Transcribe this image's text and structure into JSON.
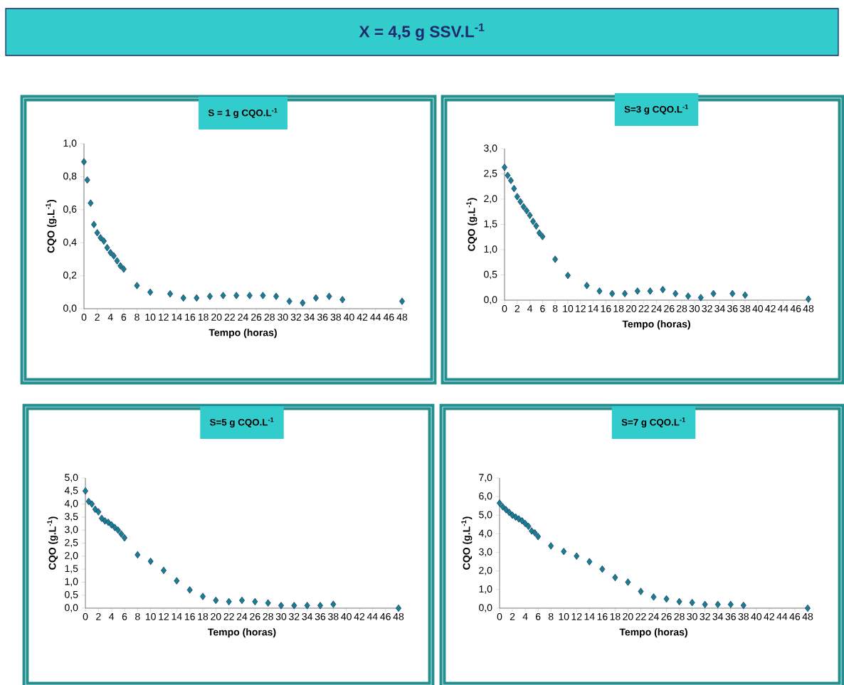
{
  "chart_data": [
    {
      "type": "scatter",
      "title": "S = 1 g CQO.L$^{-1}$",
      "annotations": [
        "X = 4,5 g SSV.L$^{-1}$"
      ],
      "xlabel": "Tempo (horas)",
      "ylabel": "CQO (g.L$^{-1}$)",
      "marker": "diamond",
      "color": "#17808f",
      "x": [
        0,
        0.5,
        1,
        1.5,
        2,
        2.5,
        3,
        3.5,
        4,
        4.5,
        5,
        5.5,
        6,
        8,
        10,
        13,
        15,
        17,
        19,
        21,
        23,
        25,
        27,
        29,
        31,
        33,
        35,
        37,
        39,
        48
      ],
      "values": [
        0.89,
        0.78,
        0.64,
        0.51,
        0.46,
        0.43,
        0.41,
        0.37,
        0.34,
        0.32,
        0.29,
        0.26,
        0.24,
        0.14,
        0.1,
        0.09,
        0.065,
        0.065,
        0.075,
        0.08,
        0.08,
        0.08,
        0.08,
        0.075,
        0.045,
        0.035,
        0.065,
        0.075,
        0.055,
        0.045
      ],
      "xlim": [
        0,
        48
      ],
      "xticks": [
        0,
        2,
        4,
        6,
        8,
        10,
        12,
        14,
        16,
        18,
        20,
        22,
        24,
        26,
        28,
        30,
        32,
        34,
        36,
        38,
        40,
        42,
        44,
        46,
        48
      ],
      "ylim": [
        0,
        1.0
      ],
      "yticks": [
        {
          "value": 0,
          "label": "0,0"
        },
        {
          "value": 0.2,
          "label": "0,2"
        },
        {
          "value": 0.4,
          "label": "0,4"
        },
        {
          "value": 0.6,
          "label": "0,6"
        },
        {
          "value": 0.8,
          "label": "0,8"
        },
        {
          "value": 1.0,
          "label": "1,0"
        }
      ]
    },
    {
      "type": "scatter",
      "title": "S=3 g CQO.L$^{-1}$",
      "xlabel": "Tempo (horas)",
      "ylabel": "CQO (g.L$^{-1}$)",
      "marker": "diamond",
      "color": "#17808f",
      "x": [
        0,
        0.5,
        1,
        1.5,
        2,
        2.5,
        3,
        3.5,
        4,
        4.5,
        5,
        5.5,
        6,
        8,
        10,
        13,
        15,
        17,
        19,
        21,
        23,
        25,
        27,
        29,
        31,
        33,
        36,
        38,
        48
      ],
      "values": [
        2.63,
        2.47,
        2.37,
        2.21,
        2.05,
        1.95,
        1.85,
        1.77,
        1.68,
        1.56,
        1.47,
        1.33,
        1.26,
        0.81,
        0.49,
        0.29,
        0.18,
        0.13,
        0.13,
        0.18,
        0.18,
        0.21,
        0.13,
        0.08,
        0.05,
        0.13,
        0.13,
        0.1,
        0.02
      ],
      "xlim": [
        0,
        48
      ],
      "xticks": [
        0,
        2,
        4,
        6,
        8,
        10,
        12,
        14,
        16,
        18,
        20,
        22,
        24,
        26,
        28,
        30,
        32,
        34,
        36,
        38,
        40,
        42,
        44,
        46,
        48
      ],
      "ylim": [
        0,
        3.0
      ],
      "yticks": [
        {
          "value": 0,
          "label": "0,0"
        },
        {
          "value": 0.5,
          "label": "0,5"
        },
        {
          "value": 1.0,
          "label": "1,0"
        },
        {
          "value": 1.5,
          "label": "1,5"
        },
        {
          "value": 2.0,
          "label": "2,0"
        },
        {
          "value": 2.5,
          "label": "2,5"
        },
        {
          "value": 3.0,
          "label": "3,0"
        }
      ]
    },
    {
      "type": "scatter",
      "title": "S=5 g CQO.L$^{-1}$",
      "xlabel": "Tempo (horas)",
      "ylabel": "CQO (g.L$^{-1}$)",
      "marker": "diamond",
      "color": "#17808f",
      "x": [
        0,
        0.5,
        1,
        1.5,
        2,
        2.5,
        3,
        3.5,
        4,
        4.5,
        5,
        5.5,
        6,
        8,
        10,
        12,
        14,
        16,
        18,
        20,
        22,
        24,
        26,
        28,
        30,
        32,
        34,
        36,
        38,
        48
      ],
      "values": [
        4.5,
        4.1,
        4.0,
        3.8,
        3.7,
        3.45,
        3.35,
        3.3,
        3.2,
        3.1,
        3.0,
        2.85,
        2.7,
        2.05,
        1.8,
        1.45,
        1.05,
        0.7,
        0.45,
        0.3,
        0.25,
        0.3,
        0.25,
        0.2,
        0.1,
        0.1,
        0.1,
        0.1,
        0.15,
        0.0
      ],
      "xlim": [
        0,
        48
      ],
      "xticks": [
        0,
        2,
        4,
        6,
        8,
        10,
        12,
        14,
        16,
        18,
        20,
        22,
        24,
        26,
        28,
        30,
        32,
        34,
        36,
        38,
        40,
        42,
        44,
        46,
        48
      ],
      "ylim": [
        0,
        5.0
      ],
      "yticks": [
        {
          "value": 0,
          "label": "0,0"
        },
        {
          "value": 0.5,
          "label": "0,5"
        },
        {
          "value": 1.0,
          "label": "1,0"
        },
        {
          "value": 1.5,
          "label": "1,5"
        },
        {
          "value": 2.0,
          "label": "2,0"
        },
        {
          "value": 2.5,
          "label": "2,5"
        },
        {
          "value": 3.0,
          "label": "3,0"
        },
        {
          "value": 3.5,
          "label": "3,5"
        },
        {
          "value": 4.0,
          "label": "4,0"
        },
        {
          "value": 4.5,
          "label": "4,5"
        },
        {
          "value": 5.0,
          "label": "5,0"
        }
      ]
    },
    {
      "type": "scatter",
      "title": "S=7 g CQO.L$^{-1}$",
      "xlabel": "Tempo (horas)",
      "ylabel": "CQO (g.L$^{-1}$)",
      "marker": "diamond",
      "color": "#17808f",
      "x": [
        0,
        0.5,
        1,
        1.5,
        2,
        2.5,
        3,
        3.5,
        4,
        4.5,
        5,
        5.5,
        6,
        8,
        10,
        12,
        14,
        16,
        18,
        20,
        22,
        24,
        26,
        28,
        30,
        32,
        34,
        36,
        38,
        48
      ],
      "values": [
        5.65,
        5.45,
        5.3,
        5.15,
        5.0,
        4.9,
        4.8,
        4.7,
        4.55,
        4.4,
        4.15,
        4.05,
        3.85,
        3.35,
        3.05,
        2.8,
        2.5,
        2.1,
        1.65,
        1.4,
        0.9,
        0.6,
        0.5,
        0.35,
        0.3,
        0.2,
        0.2,
        0.2,
        0.15,
        0.0
      ],
      "xlim": [
        0,
        48
      ],
      "xticks": [
        0,
        2,
        4,
        6,
        8,
        10,
        12,
        14,
        16,
        18,
        20,
        22,
        24,
        26,
        28,
        30,
        32,
        34,
        36,
        38,
        40,
        42,
        44,
        46,
        48
      ],
      "ylim": [
        0,
        7.0
      ],
      "yticks": [
        {
          "value": 0,
          "label": "0,0"
        },
        {
          "value": 1.0,
          "label": "1,0"
        },
        {
          "value": 2.0,
          "label": "2,0"
        },
        {
          "value": 3.0,
          "label": "3,0"
        },
        {
          "value": 4.0,
          "label": "4,0"
        },
        {
          "value": 5.0,
          "label": "5,0"
        },
        {
          "value": 6.0,
          "label": "6,0"
        },
        {
          "value": 7.0,
          "label": "7,0"
        }
      ]
    }
  ]
}
